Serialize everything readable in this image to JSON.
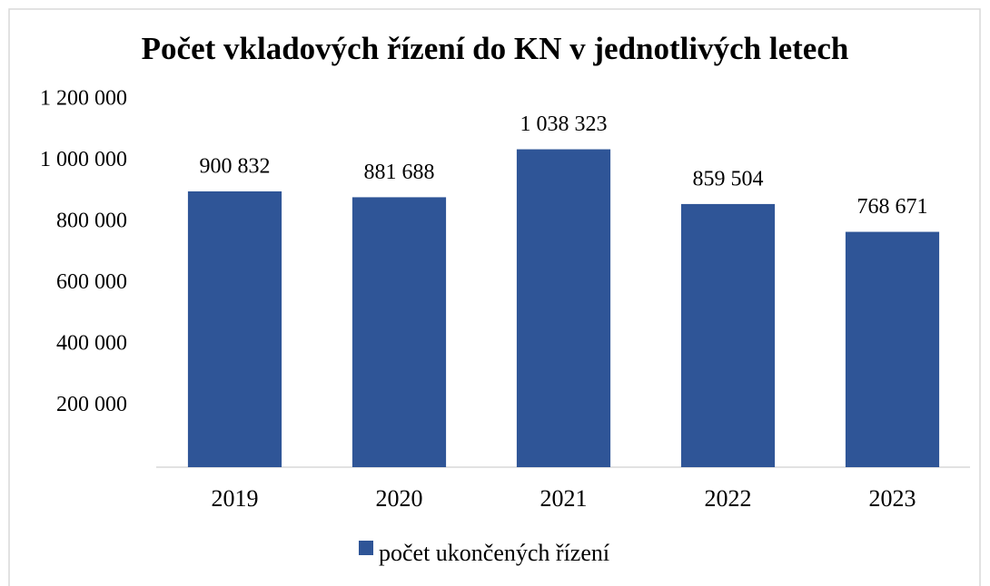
{
  "chart_data": {
    "type": "bar",
    "title": "Počet vkladových řízení do KN v jednotlivých letech",
    "categories": [
      "2019",
      "2020",
      "2021",
      "2022",
      "2023"
    ],
    "series": [
      {
        "name": "počet ukončených řízení",
        "color": "#2f5597",
        "values": [
          900832,
          881688,
          1038323,
          859504,
          768671
        ],
        "value_labels": [
          "900 832",
          "881 688",
          "1 038 323",
          "859 504",
          "768 671"
        ]
      }
    ],
    "ylim": [
      0,
      1200000
    ],
    "yticks": [
      {
        "value": 200000,
        "label": "200 000"
      },
      {
        "value": 400000,
        "label": "400 000"
      },
      {
        "value": 600000,
        "label": "600 000"
      },
      {
        "value": 800000,
        "label": "800 000"
      },
      {
        "value": 1000000,
        "label": "1 000 000"
      },
      {
        "value": 1200000,
        "label": "1 200 000"
      }
    ],
    "grid": false,
    "legend": "bottom"
  }
}
